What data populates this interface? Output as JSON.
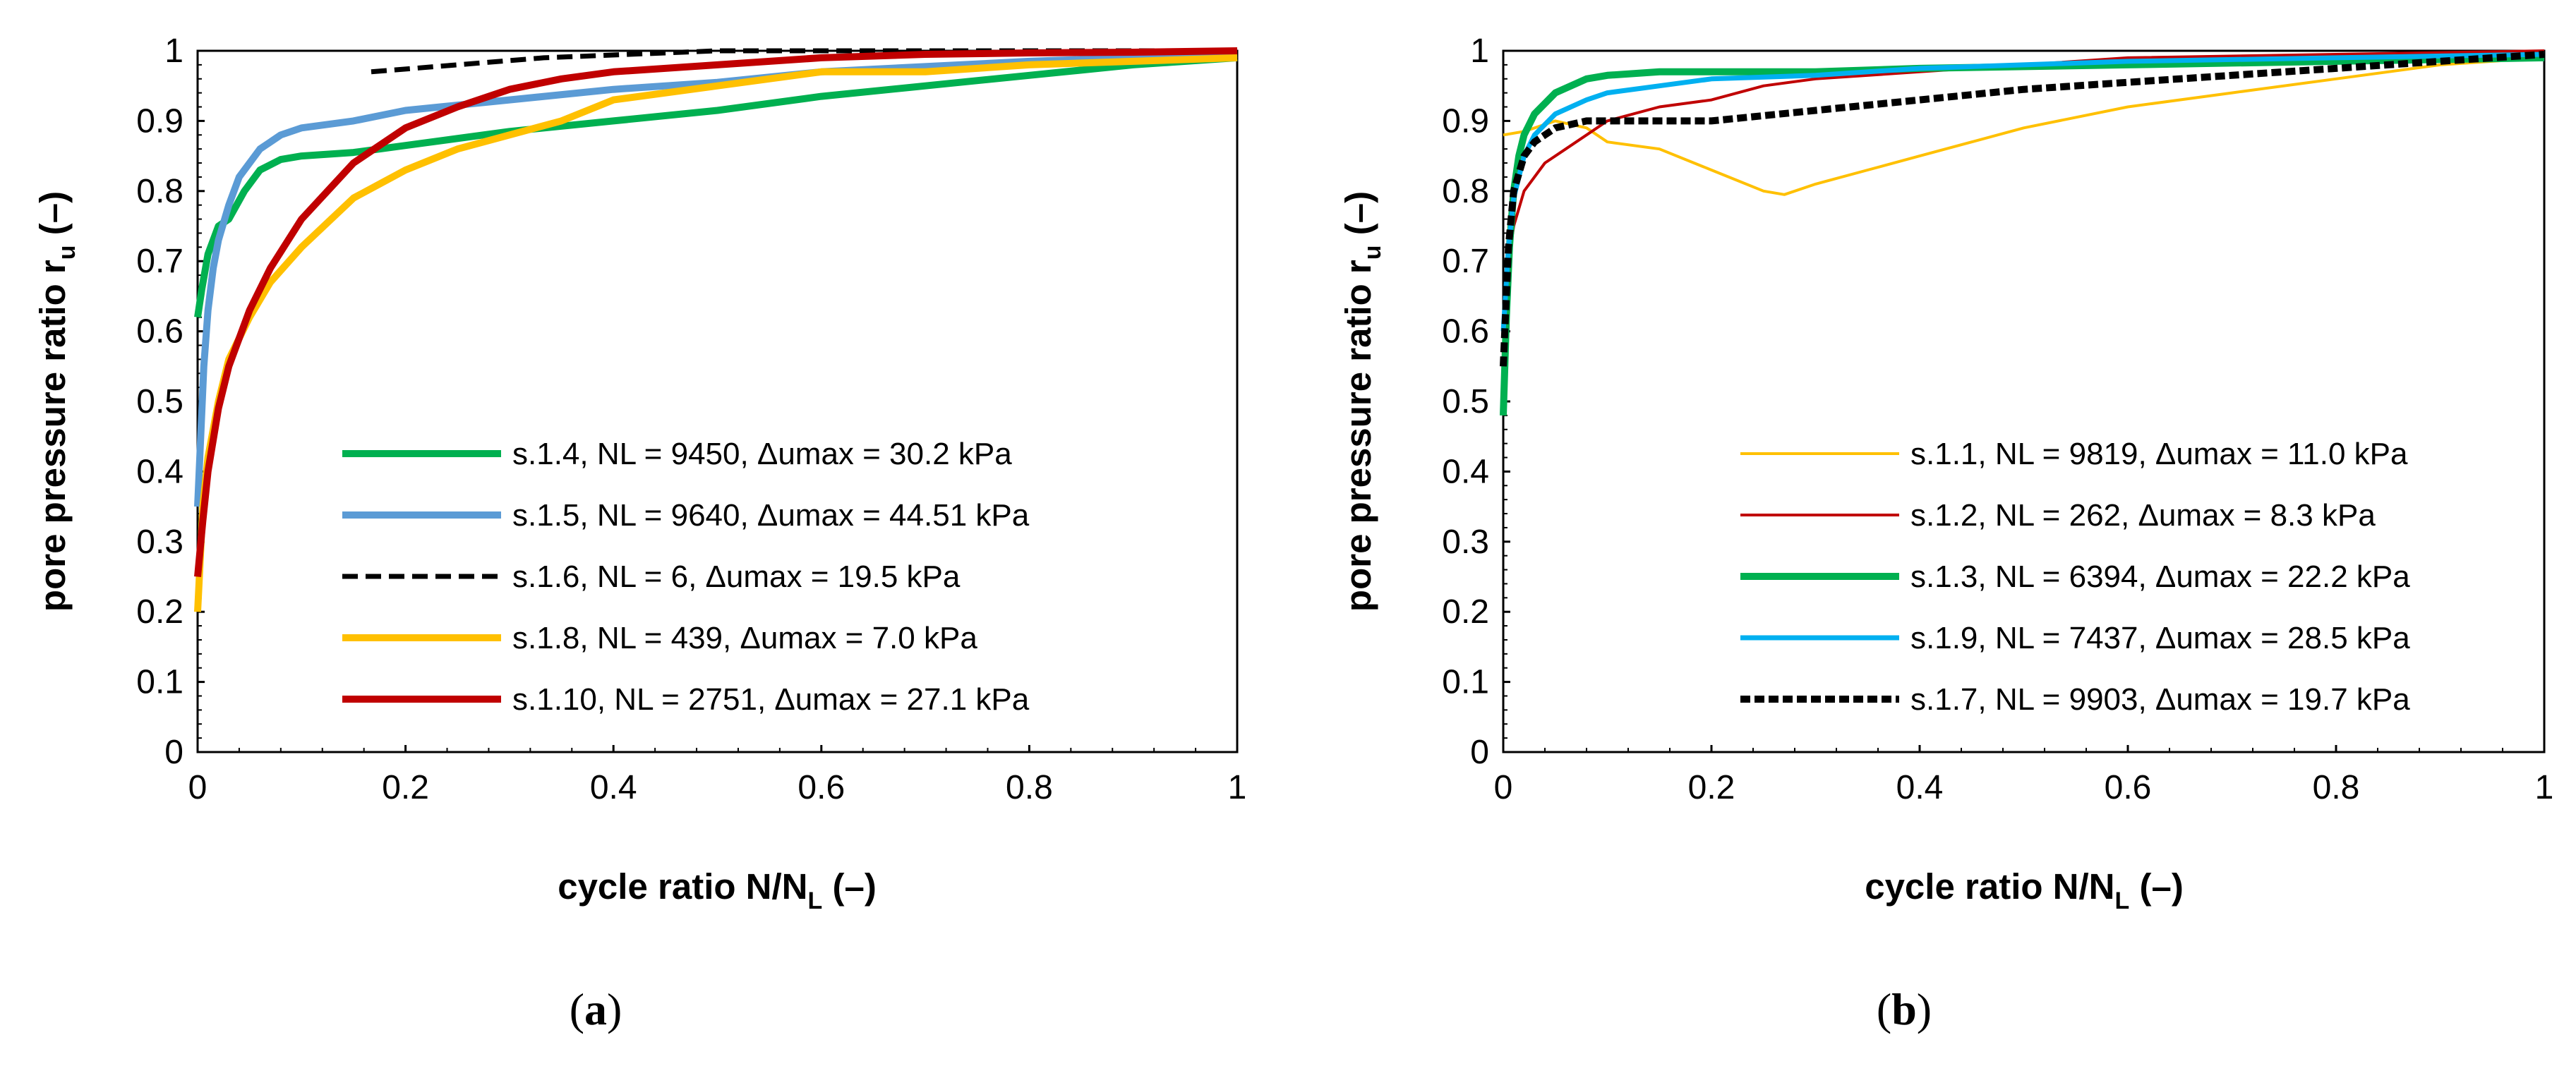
{
  "chart_data": [
    {
      "panel_label": "a",
      "type": "line",
      "xlabel": {
        "main": "cycle ratio N/N",
        "sub": "L",
        "tail": " (–)"
      },
      "ylabel": {
        "main": "pore pressure ratio r",
        "sub": "u",
        "tail": " (–)"
      },
      "xlim": [
        0,
        1
      ],
      "ylim": [
        0,
        1
      ],
      "xticks": [
        "0",
        "0.2",
        "0.4",
        "0.6",
        "0.8",
        "1"
      ],
      "yticks": [
        "0",
        "0.1",
        "0.2",
        "0.3",
        "0.4",
        "0.5",
        "0.6",
        "0.7",
        "0.8",
        "0.9",
        "1"
      ],
      "legend_position": "center-right",
      "series": [
        {
          "name": "s.1.4, NL = 9450, Δumax = 30.2 kPa",
          "color": "#00B050",
          "style": "thick",
          "x": [
            0,
            0.004,
            0.01,
            0.02,
            0.03,
            0.045,
            0.06,
            0.08,
            0.1,
            0.15,
            0.2,
            0.3,
            0.4,
            0.5,
            0.6,
            0.7,
            0.8,
            0.9,
            1.0
          ],
          "y": [
            0.62,
            0.66,
            0.71,
            0.75,
            0.76,
            0.8,
            0.83,
            0.845,
            0.85,
            0.855,
            0.865,
            0.885,
            0.9,
            0.915,
            0.935,
            0.95,
            0.965,
            0.98,
            0.99
          ]
        },
        {
          "name": "s.1.5, NL = 9640, Δumax = 44.51 kPa",
          "color": "#5B9BD5",
          "style": "thick",
          "x": [
            0,
            0.003,
            0.006,
            0.01,
            0.015,
            0.02,
            0.03,
            0.04,
            0.06,
            0.08,
            0.1,
            0.15,
            0.2,
            0.3,
            0.4,
            0.5,
            0.6,
            0.8,
            1.0
          ],
          "y": [
            0.35,
            0.45,
            0.55,
            0.63,
            0.69,
            0.73,
            0.78,
            0.82,
            0.86,
            0.88,
            0.89,
            0.9,
            0.915,
            0.93,
            0.945,
            0.955,
            0.97,
            0.985,
            0.995
          ]
        },
        {
          "name": "s.1.6, NL = 6, Δumax = 19.5 kPa",
          "color": "#000000",
          "style": "dashed",
          "x": [
            0.167,
            0.333,
            0.5,
            0.667,
            0.833,
            1.0
          ],
          "y": [
            0.97,
            0.99,
            1.0,
            1.0,
            1.0,
            1.0
          ]
        },
        {
          "name": "s.1.8, NL = 439, Δumax = 7.0 kPa",
          "color": "#FFC000",
          "style": "thick",
          "x": [
            0,
            0.005,
            0.01,
            0.02,
            0.03,
            0.05,
            0.07,
            0.1,
            0.15,
            0.2,
            0.25,
            0.3,
            0.35,
            0.4,
            0.5,
            0.6,
            0.7,
            0.8,
            0.9,
            1.0
          ],
          "y": [
            0.2,
            0.35,
            0.42,
            0.5,
            0.56,
            0.62,
            0.67,
            0.72,
            0.79,
            0.83,
            0.86,
            0.88,
            0.9,
            0.93,
            0.95,
            0.97,
            0.97,
            0.98,
            0.985,
            0.99
          ]
        },
        {
          "name": "s.1.10, NL = 2751, Δumax = 27.1 kPa",
          "color": "#C00000",
          "style": "thick",
          "x": [
            0,
            0.005,
            0.01,
            0.02,
            0.03,
            0.05,
            0.07,
            0.1,
            0.15,
            0.2,
            0.25,
            0.3,
            0.35,
            0.4,
            0.5,
            0.6,
            0.7,
            0.8,
            0.9,
            1.0
          ],
          "y": [
            0.25,
            0.33,
            0.4,
            0.49,
            0.55,
            0.63,
            0.69,
            0.76,
            0.84,
            0.89,
            0.92,
            0.945,
            0.96,
            0.97,
            0.98,
            0.99,
            0.995,
            0.997,
            0.998,
            1.0
          ]
        }
      ]
    },
    {
      "panel_label": "b",
      "type": "line",
      "xlabel": {
        "main": "cycle ratio N/N",
        "sub": "L",
        "tail": " (–)"
      },
      "ylabel": {
        "main": "pore pressure ratio r",
        "sub": "u",
        "tail": " (–)"
      },
      "xlim": [
        0,
        1
      ],
      "ylim": [
        0,
        1
      ],
      "xticks": [
        "0",
        "0.2",
        "0.4",
        "0.6",
        "0.8",
        "1"
      ],
      "yticks": [
        "0",
        "0.1",
        "0.2",
        "0.3",
        "0.4",
        "0.5",
        "0.6",
        "0.7",
        "0.8",
        "0.9",
        "1"
      ],
      "legend_position": "center-right",
      "series": [
        {
          "name": "s.1.1, NL = 9819, Δumax = 11.0 kPa",
          "color": "#FFC000",
          "style": "thin",
          "x": [
            0,
            0.02,
            0.05,
            0.08,
            0.1,
            0.15,
            0.2,
            0.25,
            0.27,
            0.3,
            0.35,
            0.4,
            0.45,
            0.5,
            0.6,
            0.7,
            0.8,
            0.9,
            1.0
          ],
          "y": [
            0.88,
            0.885,
            0.9,
            0.89,
            0.87,
            0.86,
            0.83,
            0.8,
            0.795,
            0.81,
            0.83,
            0.85,
            0.87,
            0.89,
            0.92,
            0.94,
            0.96,
            0.98,
            0.99
          ]
        },
        {
          "name": "s.1.2, NL = 262, Δumax = 8.3 kPa",
          "color": "#C00000",
          "style": "thin",
          "x": [
            0,
            0.005,
            0.01,
            0.02,
            0.04,
            0.06,
            0.08,
            0.1,
            0.15,
            0.2,
            0.25,
            0.3,
            0.4,
            0.5,
            0.6,
            0.8,
            1.0
          ],
          "y": [
            0.6,
            0.7,
            0.75,
            0.8,
            0.84,
            0.86,
            0.88,
            0.9,
            0.92,
            0.93,
            0.95,
            0.96,
            0.97,
            0.98,
            0.99,
            0.995,
            1.0
          ]
        },
        {
          "name": "s.1.3, NL = 6394, Δumax = 22.2 kPa",
          "color": "#00B050",
          "style": "thick",
          "x": [
            0,
            0.003,
            0.006,
            0.01,
            0.015,
            0.02,
            0.03,
            0.05,
            0.08,
            0.1,
            0.15,
            0.2,
            0.3,
            0.4,
            0.6,
            0.8,
            1.0
          ],
          "y": [
            0.48,
            0.62,
            0.72,
            0.8,
            0.85,
            0.88,
            0.91,
            0.94,
            0.96,
            0.965,
            0.97,
            0.97,
            0.97,
            0.975,
            0.98,
            0.985,
            0.99
          ]
        },
        {
          "name": "s.1.9, NL = 7437, Δumax = 28.5 kPa",
          "color": "#00B0F0",
          "style": "medium",
          "x": [
            0,
            0.005,
            0.01,
            0.02,
            0.03,
            0.05,
            0.08,
            0.1,
            0.15,
            0.2,
            0.3,
            0.4,
            0.6,
            0.8,
            1.0
          ],
          "y": [
            0.6,
            0.72,
            0.79,
            0.85,
            0.88,
            0.91,
            0.93,
            0.94,
            0.95,
            0.96,
            0.965,
            0.975,
            0.985,
            0.99,
            0.995
          ]
        },
        {
          "name": "s.1.7, NL = 9903, Δumax = 19.7 kPa",
          "color": "#000000",
          "style": "dotted",
          "x": [
            0,
            0.005,
            0.01,
            0.02,
            0.03,
            0.05,
            0.08,
            0.1,
            0.15,
            0.2,
            0.3,
            0.4,
            0.5,
            0.6,
            0.7,
            0.8,
            0.9,
            1.0
          ],
          "y": [
            0.55,
            0.72,
            0.8,
            0.85,
            0.87,
            0.89,
            0.9,
            0.9,
            0.9,
            0.9,
            0.915,
            0.93,
            0.945,
            0.955,
            0.965,
            0.975,
            0.985,
            0.995
          ]
        }
      ]
    }
  ]
}
